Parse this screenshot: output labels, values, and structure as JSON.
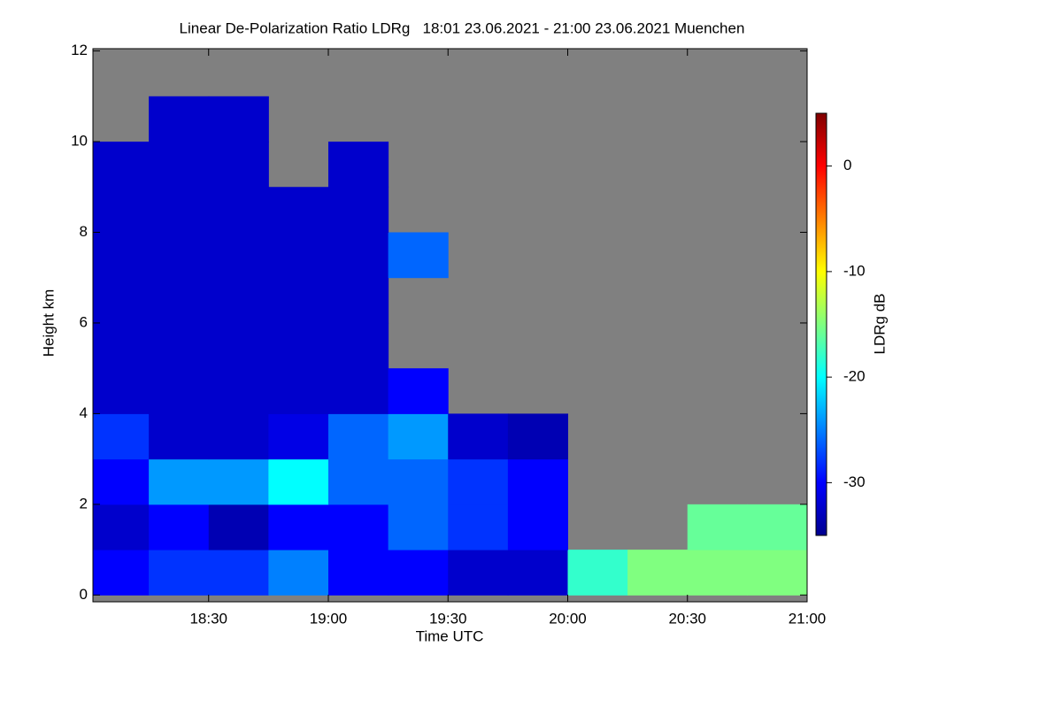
{
  "chart_data": {
    "type": "heatmap",
    "title": "Linear De-Polarization Ratio LDRg   18:01 23.06.2021 - 21:00 23.06.2021 Muenchen",
    "x_label": "Time UTC",
    "y_label": "Height km",
    "colorbar_label": "LDRg dB",
    "xlim": [
      18.0167,
      21.0
    ],
    "xticks": [
      {
        "value": 18.5,
        "label": "18:30"
      },
      {
        "value": 19.0,
        "label": "19:00"
      },
      {
        "value": 19.5,
        "label": "19:30"
      },
      {
        "value": 20.0,
        "label": "20:00"
      },
      {
        "value": 20.5,
        "label": "20:30"
      },
      {
        "value": 21.0,
        "label": "21:00"
      }
    ],
    "ylim": [
      -0.15,
      12.05
    ],
    "yticks": [
      0,
      2,
      4,
      6,
      8,
      10,
      12
    ],
    "zlim": [
      -35,
      5
    ],
    "zticks": [
      0,
      -10,
      -20,
      -30
    ],
    "background": "#808080",
    "colormap": "jet",
    "x": [
      18.125,
      18.375,
      18.625,
      18.875,
      19.125,
      19.375,
      19.625,
      19.875,
      20.125,
      20.375,
      20.625,
      20.875
    ],
    "y": [
      0.5,
      1.5,
      2.5,
      3.5,
      4.5,
      5.5,
      6.5,
      7.5,
      8.5,
      9.5,
      10.5,
      11.5
    ],
    "z": [
      [
        -30,
        -28,
        -28,
        -25,
        -30,
        -30,
        -32,
        -32,
        -18,
        -15,
        -15,
        -15
      ],
      [
        -32,
        -30,
        -33,
        -30,
        -30,
        -26,
        -28,
        -30,
        null,
        null,
        -16,
        -16
      ],
      [
        -30,
        -24,
        -24,
        -20,
        -26,
        -26,
        -28,
        -30,
        null,
        null,
        null,
        null
      ],
      [
        -28,
        -32,
        -32,
        -31,
        -26,
        -24,
        -32,
        -33,
        null,
        null,
        null,
        null
      ],
      [
        -32,
        -32,
        -32,
        -32,
        -32,
        -30,
        null,
        null,
        null,
        null,
        null,
        null
      ],
      [
        -32,
        -32,
        -32,
        -32,
        -32,
        null,
        null,
        null,
        null,
        null,
        null,
        null
      ],
      [
        -32,
        -32,
        -32,
        -32,
        -32,
        null,
        null,
        null,
        null,
        null,
        null,
        null
      ],
      [
        -32,
        -32,
        -32,
        -32,
        -32,
        -26,
        null,
        null,
        null,
        null,
        null,
        null
      ],
      [
        -32,
        -32,
        -32,
        -32,
        -32,
        null,
        null,
        null,
        null,
        null,
        null,
        null
      ],
      [
        -32,
        -32,
        -32,
        null,
        -32,
        null,
        null,
        null,
        null,
        null,
        null,
        null
      ],
      [
        null,
        -32,
        -32,
        null,
        null,
        null,
        null,
        null,
        null,
        null,
        null,
        null
      ],
      [
        null,
        null,
        null,
        null,
        null,
        null,
        null,
        null,
        null,
        null,
        null,
        null
      ]
    ]
  }
}
